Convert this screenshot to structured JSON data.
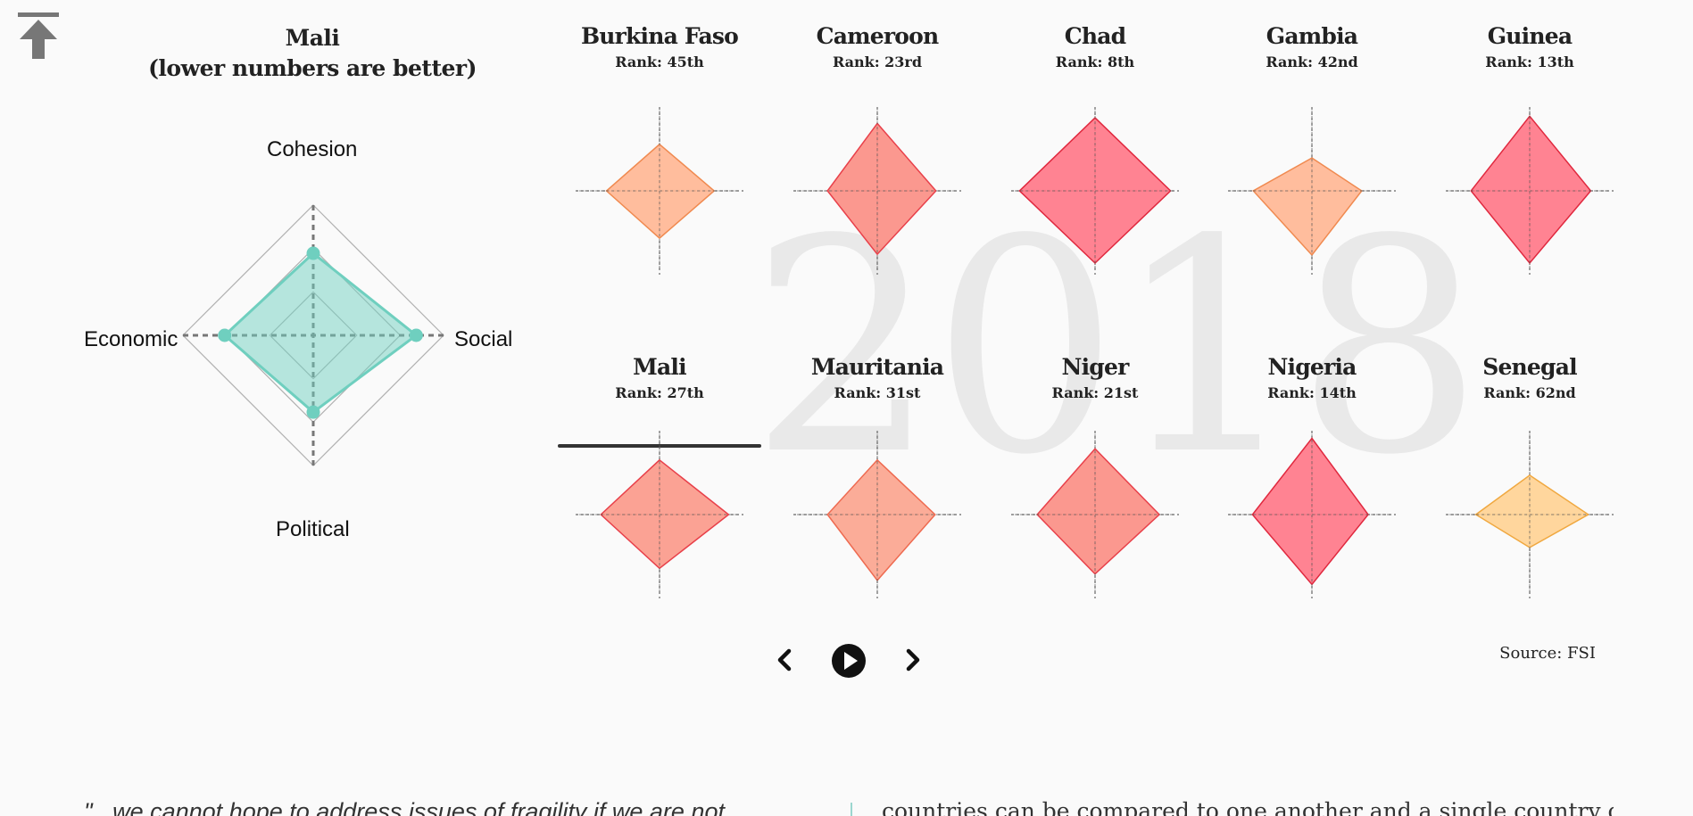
{
  "page": {
    "back_to_top_icon": "arrow-up-to-line-icon",
    "source": "Source: FSI",
    "year": "2018",
    "quote_text": "\"...we cannot hope to address issues of fragility if we are not",
    "body_text": "countries can be compared to one another and a single country can compare its"
  },
  "chart_data": [
    {
      "type": "radar",
      "title_line1": "Mali",
      "title_line2": "(lower numbers are better)",
      "axes": [
        "Cohesion",
        "Social",
        "Political",
        "Economic"
      ],
      "values": [
        0.63,
        0.79,
        0.59,
        0.68
      ],
      "color": "#6fcfbf"
    },
    {
      "type": "radar-grid",
      "axes": [
        "Cohesion",
        "Social",
        "Political",
        "Economic"
      ],
      "colors": {
        "Burkina Faso": "#ffb48f",
        "Cameroon": "#fa8a80",
        "Chad": "#ff7283",
        "Gambia": "#ffb48f",
        "Guinea": "#ff7283",
        "Mali": "#fa9585",
        "Mauritania": "#fba08a",
        "Niger": "#fa8a80",
        "Nigeria": "#ff7283",
        "Senegal": "#ffd08f"
      },
      "countries": [
        {
          "name": "Burkina Faso",
          "rank": "Rank: 45th",
          "values": [
            0.58,
            0.68,
            0.59,
            0.66
          ],
          "fill": "#ffb48f",
          "stroke": "#f08a50"
        },
        {
          "name": "Cameroon",
          "rank": "Rank: 23rd",
          "values": [
            0.84,
            0.73,
            0.79,
            0.62
          ],
          "fill": "#fa8a80",
          "stroke": "#e8404a"
        },
        {
          "name": "Chad",
          "rank": "Rank: 8th",
          "values": [
            0.91,
            0.94,
            0.9,
            0.94
          ],
          "fill": "#ff7283",
          "stroke": "#e0283e"
        },
        {
          "name": "Gambia",
          "rank": "Rank: 42nd",
          "values": [
            0.41,
            0.62,
            0.8,
            0.73
          ],
          "fill": "#ffb48f",
          "stroke": "#f08a50"
        },
        {
          "name": "Guinea",
          "rank": "Rank: 13th",
          "values": [
            0.93,
            0.76,
            0.9,
            0.73
          ],
          "fill": "#ff7283",
          "stroke": "#e0283e"
        },
        {
          "name": "Mali",
          "rank": "Rank: 27th",
          "values": [
            0.68,
            0.86,
            0.67,
            0.73
          ],
          "fill": "#fa9585",
          "stroke": "#e8404a"
        },
        {
          "name": "Mauritania",
          "rank": "Rank: 31st",
          "values": [
            0.68,
            0.72,
            0.82,
            0.62
          ],
          "fill": "#fba08a",
          "stroke": "#ee6a50"
        },
        {
          "name": "Niger",
          "rank": "Rank: 21st",
          "values": [
            0.82,
            0.8,
            0.74,
            0.72
          ],
          "fill": "#fa8a80",
          "stroke": "#e8404a"
        },
        {
          "name": "Nigeria",
          "rank": "Rank: 14th",
          "values": [
            0.95,
            0.7,
            0.87,
            0.74
          ],
          "fill": "#ff7283",
          "stroke": "#e0283e"
        },
        {
          "name": "Senegal",
          "rank": "Rank: 62nd",
          "values": [
            0.49,
            0.73,
            0.41,
            0.67
          ],
          "fill": "#ffd08f",
          "stroke": "#f0a840"
        }
      ],
      "selected": "Mali"
    }
  ],
  "controls": {
    "prev_icon": "chevron-left-icon",
    "play_icon": "play-circle-icon",
    "next_icon": "chevron-right-icon"
  }
}
